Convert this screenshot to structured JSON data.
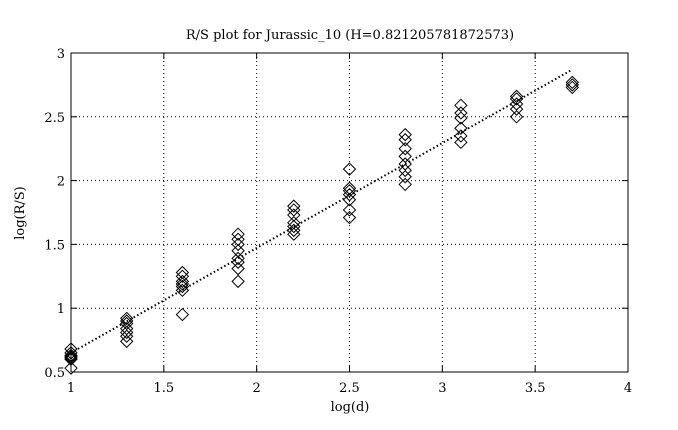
{
  "chart_data": {
    "type": "scatter",
    "title": "R/S plot for Jurassic_10 (H=0.821205781872573)",
    "xlabel": "log(d)",
    "ylabel": "log(R/S)",
    "xlim": [
      1,
      4
    ],
    "ylim": [
      0.5,
      3
    ],
    "xticks": [
      1,
      1.5,
      2,
      2.5,
      3,
      3.5,
      4
    ],
    "xtick_labels": [
      "1",
      "1.5",
      "2",
      "2.5",
      "3",
      "3.5",
      "4"
    ],
    "yticks": [
      0.5,
      1,
      1.5,
      2,
      2.5,
      3
    ],
    "ytick_labels": [
      "0.5",
      "1",
      "1.5",
      "2",
      "2.5",
      "3"
    ],
    "grid": true,
    "marker": "diamond",
    "series": [
      {
        "points": [
          [
            1.0,
            0.68
          ],
          [
            1.0,
            0.65
          ],
          [
            1.0,
            0.63
          ],
          [
            1.0,
            0.62
          ],
          [
            1.0,
            0.61
          ],
          [
            1.0,
            0.6
          ],
          [
            1.0,
            0.53
          ],
          [
            1.3,
            0.92
          ],
          [
            1.3,
            0.9
          ],
          [
            1.3,
            0.88
          ],
          [
            1.3,
            0.84
          ],
          [
            1.3,
            0.81
          ],
          [
            1.3,
            0.78
          ],
          [
            1.3,
            0.74
          ],
          [
            1.6,
            1.28
          ],
          [
            1.6,
            1.25
          ],
          [
            1.6,
            1.21
          ],
          [
            1.6,
            1.19
          ],
          [
            1.6,
            1.17
          ],
          [
            1.6,
            1.14
          ],
          [
            1.6,
            0.95
          ],
          [
            1.9,
            1.58
          ],
          [
            1.9,
            1.54
          ],
          [
            1.9,
            1.5
          ],
          [
            1.9,
            1.45
          ],
          [
            1.9,
            1.39
          ],
          [
            1.9,
            1.36
          ],
          [
            1.9,
            1.31
          ],
          [
            1.9,
            1.21
          ],
          [
            2.2,
            1.8
          ],
          [
            2.2,
            1.77
          ],
          [
            2.2,
            1.73
          ],
          [
            2.2,
            1.67
          ],
          [
            2.2,
            1.64
          ],
          [
            2.2,
            1.61
          ],
          [
            2.2,
            1.58
          ],
          [
            2.5,
            2.09
          ],
          [
            2.5,
            1.94
          ],
          [
            2.5,
            1.92
          ],
          [
            2.5,
            1.89
          ],
          [
            2.5,
            1.85
          ],
          [
            2.5,
            1.77
          ],
          [
            2.5,
            1.71
          ],
          [
            2.8,
            2.36
          ],
          [
            2.8,
            2.32
          ],
          [
            2.8,
            2.25
          ],
          [
            2.8,
            2.19
          ],
          [
            2.8,
            2.13
          ],
          [
            2.8,
            2.08
          ],
          [
            2.8,
            2.03
          ],
          [
            2.8,
            1.97
          ],
          [
            3.1,
            2.59
          ],
          [
            3.1,
            2.53
          ],
          [
            3.1,
            2.49
          ],
          [
            3.1,
            2.41
          ],
          [
            3.1,
            2.35
          ],
          [
            3.1,
            2.3
          ],
          [
            3.4,
            2.66
          ],
          [
            3.4,
            2.64
          ],
          [
            3.4,
            2.6
          ],
          [
            3.4,
            2.56
          ],
          [
            3.4,
            2.5
          ],
          [
            3.7,
            2.77
          ],
          [
            3.7,
            2.75
          ],
          [
            3.7,
            2.73
          ]
        ]
      }
    ],
    "fit_line": {
      "style": "dotted",
      "from": [
        1.0,
        0.65
      ],
      "to": [
        3.7,
        2.87
      ]
    }
  }
}
